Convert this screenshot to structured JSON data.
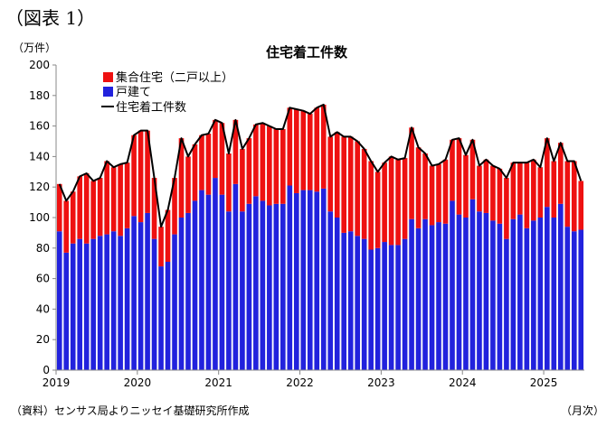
{
  "figure_label": "（図表 1）",
  "unit_label": "（万件）",
  "source_label": "（資料）センサス局よりニッセイ基礎研究所作成",
  "x_unit_label": "（月次）",
  "colors": {
    "multi": "#ee1111",
    "single": "#2222dd",
    "total_line": "#000000",
    "axis": "#888888"
  },
  "chart_data": {
    "type": "bar",
    "stacked": true,
    "title": "住宅着工件数",
    "ylabel": "（万件）",
    "xlabel": "（月次）",
    "ylim": [
      0,
      200
    ],
    "yticks": [
      0,
      20,
      40,
      60,
      80,
      100,
      120,
      140,
      160,
      180,
      200
    ],
    "xtick_labels": [
      "2019",
      "2020",
      "2021",
      "2022",
      "2023",
      "2024",
      "2025"
    ],
    "legend_position": "top-left",
    "categories": [
      "2019-01",
      "2019-02",
      "2019-03",
      "2019-04",
      "2019-05",
      "2019-06",
      "2019-07",
      "2019-08",
      "2019-09",
      "2019-10",
      "2019-11",
      "2019-12",
      "2020-01",
      "2020-02",
      "2020-03",
      "2020-04",
      "2020-05",
      "2020-06",
      "2020-07",
      "2020-08",
      "2020-09",
      "2020-10",
      "2020-11",
      "2020-12",
      "2021-01",
      "2021-02",
      "2021-03",
      "2021-04",
      "2021-05",
      "2021-06",
      "2021-07",
      "2021-08",
      "2021-09",
      "2021-10",
      "2021-11",
      "2021-12",
      "2022-01",
      "2022-02",
      "2022-03",
      "2022-04",
      "2022-05",
      "2022-06",
      "2022-07",
      "2022-08",
      "2022-09",
      "2022-10",
      "2022-11",
      "2022-12",
      "2023-01",
      "2023-02",
      "2023-03",
      "2023-04",
      "2023-05",
      "2023-06",
      "2023-07",
      "2023-08",
      "2023-09",
      "2023-10",
      "2023-11",
      "2023-12",
      "2024-01",
      "2024-02",
      "2024-03",
      "2024-04",
      "2024-05",
      "2024-06",
      "2024-07",
      "2024-08",
      "2024-09",
      "2024-10",
      "2024-11",
      "2024-12",
      "2025-01",
      "2025-02",
      "2025-03",
      "2025-04",
      "2025-05",
      "2025-06"
    ],
    "series": [
      {
        "name": "戸建て",
        "type": "bar",
        "values": [
          91,
          77,
          83,
          86,
          83,
          86,
          88,
          89,
          91,
          88,
          93,
          101,
          97,
          103,
          86,
          68,
          71,
          89,
          100,
          103,
          111,
          118,
          115,
          126,
          115,
          104,
          122,
          104,
          109,
          114,
          111,
          108,
          109,
          109,
          121,
          116,
          118,
          118,
          117,
          119,
          104,
          100,
          90,
          91,
          88,
          86,
          79,
          80,
          84,
          82,
          82,
          86,
          99,
          93,
          99,
          95,
          97,
          96,
          111,
          102,
          100,
          112,
          104,
          103,
          98,
          96,
          86,
          99,
          102,
          93,
          98,
          100,
          107,
          100,
          109,
          94,
          91,
          92
        ]
      },
      {
        "name": "集合住宅（二戸以上）",
        "type": "bar",
        "values": [
          31,
          34,
          34,
          41,
          46,
          38,
          38,
          48,
          42,
          47,
          43,
          53,
          60,
          54,
          40,
          26,
          34,
          37,
          52,
          37,
          37,
          36,
          40,
          38,
          47,
          38,
          42,
          41,
          43,
          47,
          51,
          52,
          49,
          49,
          51,
          55,
          52,
          50,
          55,
          55,
          49,
          56,
          63,
          62,
          62,
          59,
          58,
          50,
          52,
          58,
          56,
          53,
          60,
          53,
          43,
          39,
          38,
          42,
          40,
          50,
          41,
          39,
          30,
          35,
          36,
          36,
          40,
          37,
          34,
          43,
          40,
          33,
          45,
          37,
          40,
          43,
          46,
          32
        ]
      },
      {
        "name": "住宅着工件数",
        "type": "line",
        "values": [
          122,
          111,
          117,
          127,
          129,
          124,
          126,
          137,
          133,
          135,
          136,
          154,
          157,
          157,
          126,
          94,
          105,
          126,
          152,
          140,
          148,
          154,
          155,
          164,
          162,
          142,
          164,
          145,
          152,
          161,
          162,
          160,
          158,
          158,
          172,
          171,
          170,
          168,
          172,
          174,
          153,
          156,
          153,
          153,
          150,
          145,
          137,
          130,
          136,
          140,
          138,
          139,
          159,
          146,
          142,
          134,
          135,
          138,
          151,
          152,
          141,
          151,
          134,
          138,
          134,
          132,
          126,
          136,
          136,
          136,
          138,
          133,
          152,
          137,
          149,
          137,
          137,
          124
        ]
      }
    ]
  }
}
